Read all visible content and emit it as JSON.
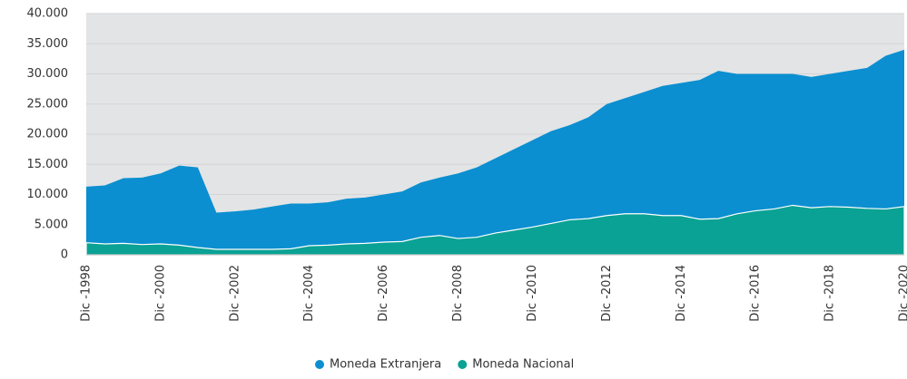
{
  "chart_data": {
    "type": "area",
    "categories": [
      "Dic -1998",
      null,
      null,
      null,
      "Dic -2000",
      null,
      null,
      null,
      "Dic -2002",
      null,
      null,
      null,
      "Dic -2004",
      null,
      null,
      null,
      "Dic -2006",
      null,
      null,
      null,
      "Dic -2008",
      null,
      null,
      null,
      "Dic -2010",
      null,
      null,
      null,
      "Dic -2012",
      null,
      null,
      null,
      "Dic -2014",
      null,
      null,
      null,
      "Dic -2016",
      null,
      null,
      null,
      "Dic -2018",
      null,
      null,
      null,
      "Dic -2020"
    ],
    "series": [
      {
        "name": "Moneda Extranjera",
        "color": "#0b8fd0",
        "values": [
          11300,
          11500,
          12700,
          12800,
          13500,
          14800,
          14500,
          7000,
          7200,
          7500,
          8000,
          8500,
          8500,
          8700,
          9300,
          9500,
          10000,
          10500,
          12000,
          12800,
          13500,
          14500,
          16000,
          17500,
          19000,
          20500,
          21500,
          22800,
          25000,
          26000,
          27000,
          28000,
          28500,
          29000,
          30500,
          30000,
          30000,
          30000,
          30000,
          29500,
          30000,
          30500,
          31000,
          33000,
          34000
        ]
      },
      {
        "name": "Moneda Nacional",
        "color": "#0aa294",
        "values": [
          2000,
          1800,
          1900,
          1700,
          1800,
          1600,
          1200,
          900,
          900,
          900,
          900,
          1000,
          1500,
          1600,
          1800,
          1900,
          2100,
          2200,
          2900,
          3200,
          2700,
          2900,
          3600,
          4100,
          4600,
          5200,
          5800,
          6000,
          6500,
          6800,
          6800,
          6500,
          6500,
          5900,
          6000,
          6800,
          7300,
          7600,
          8200,
          7800,
          8000,
          7900,
          7700,
          7600,
          8000
        ]
      }
    ],
    "ylim": [
      0,
      40000
    ],
    "yticks": [
      0,
      {
        "value": 5000,
        "label": "5.000"
      },
      {
        "value": 10000,
        "label": "10.000"
      },
      {
        "value": 15000,
        "label": "15.000"
      },
      {
        "value": 20000,
        "label": "20.000"
      },
      {
        "value": 25000,
        "label": "25.000"
      },
      {
        "value": 30000,
        "label": "30.000"
      },
      {
        "value": 35000,
        "label": "35.000"
      },
      {
        "value": 40000,
        "label": "40.000"
      }
    ],
    "grid": true
  }
}
